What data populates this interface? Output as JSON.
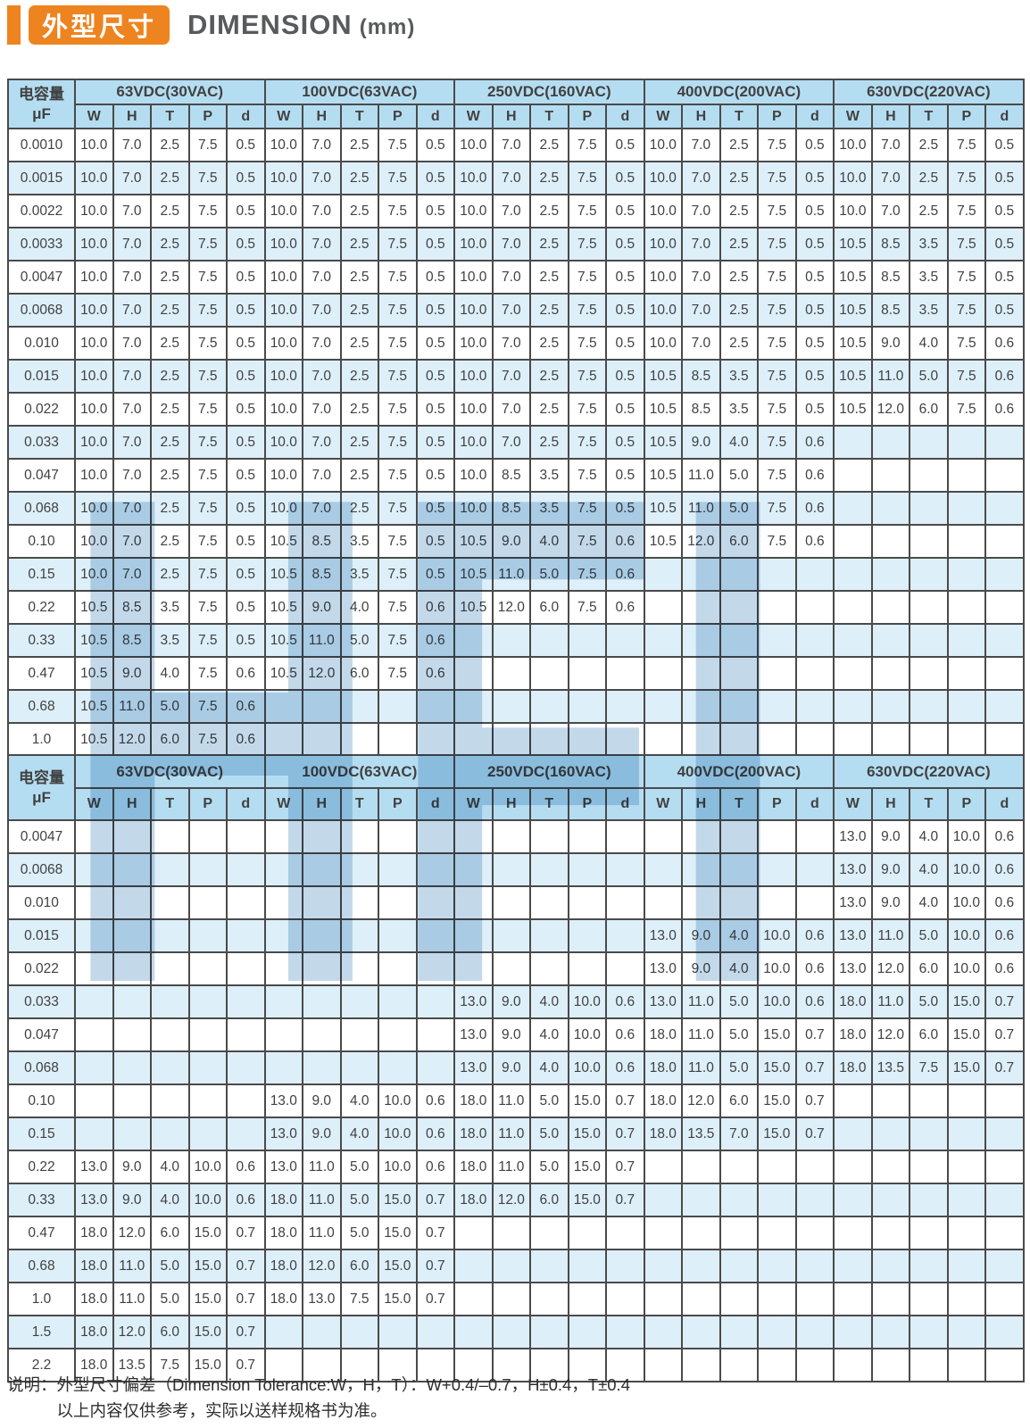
{
  "page": {
    "tag_cn": "外型尺寸",
    "title": "DIMENSION",
    "title_unit": "(mm)",
    "watermark": "HFI",
    "footer_label": "说明：",
    "footer_line1": "外型尺寸偏差（Dimension Tolerance:W，H，T）：W+0.4/–0.7，H±0.4，T±0.4",
    "footer_line2": "以上内容仅供参考，实际以送样规格书为准。"
  },
  "colors": {
    "accent_orange": "#EE8420",
    "header_blue": "#B5DDF1",
    "stripe_blue": "#DDEFF9",
    "grid_border": "#4A4A4A",
    "watermark_blue": "#6FA3CC"
  },
  "table_header": {
    "cap_line1": "电容量",
    "cap_line2": "μF",
    "groups": [
      "63VDC(30VAC)",
      "100VDC(63VAC)",
      "250VDC(160VAC)",
      "400VDC(200VAC)",
      "630VDC(220VAC)"
    ],
    "dims": [
      "W",
      "H",
      "T",
      "P",
      "d"
    ]
  },
  "tables": [
    {
      "rows": [
        {
          "cap": "0.0010",
          "groups": [
            [
              "10.0",
              "7.0",
              "2.5",
              "7.5",
              "0.5"
            ],
            [
              "10.0",
              "7.0",
              "2.5",
              "7.5",
              "0.5"
            ],
            [
              "10.0",
              "7.0",
              "2.5",
              "7.5",
              "0.5"
            ],
            [
              "10.0",
              "7.0",
              "2.5",
              "7.5",
              "0.5"
            ],
            [
              "10.0",
              "7.0",
              "2.5",
              "7.5",
              "0.5"
            ]
          ]
        },
        {
          "cap": "0.0015",
          "groups": [
            [
              "10.0",
              "7.0",
              "2.5",
              "7.5",
              "0.5"
            ],
            [
              "10.0",
              "7.0",
              "2.5",
              "7.5",
              "0.5"
            ],
            [
              "10.0",
              "7.0",
              "2.5",
              "7.5",
              "0.5"
            ],
            [
              "10.0",
              "7.0",
              "2.5",
              "7.5",
              "0.5"
            ],
            [
              "10.0",
              "7.0",
              "2.5",
              "7.5",
              "0.5"
            ]
          ]
        },
        {
          "cap": "0.0022",
          "groups": [
            [
              "10.0",
              "7.0",
              "2.5",
              "7.5",
              "0.5"
            ],
            [
              "10.0",
              "7.0",
              "2.5",
              "7.5",
              "0.5"
            ],
            [
              "10.0",
              "7.0",
              "2.5",
              "7.5",
              "0.5"
            ],
            [
              "10.0",
              "7.0",
              "2.5",
              "7.5",
              "0.5"
            ],
            [
              "10.0",
              "7.0",
              "2.5",
              "7.5",
              "0.5"
            ]
          ]
        },
        {
          "cap": "0.0033",
          "groups": [
            [
              "10.0",
              "7.0",
              "2.5",
              "7.5",
              "0.5"
            ],
            [
              "10.0",
              "7.0",
              "2.5",
              "7.5",
              "0.5"
            ],
            [
              "10.0",
              "7.0",
              "2.5",
              "7.5",
              "0.5"
            ],
            [
              "10.0",
              "7.0",
              "2.5",
              "7.5",
              "0.5"
            ],
            [
              "10.5",
              "8.5",
              "3.5",
              "7.5",
              "0.5"
            ]
          ]
        },
        {
          "cap": "0.0047",
          "groups": [
            [
              "10.0",
              "7.0",
              "2.5",
              "7.5",
              "0.5"
            ],
            [
              "10.0",
              "7.0",
              "2.5",
              "7.5",
              "0.5"
            ],
            [
              "10.0",
              "7.0",
              "2.5",
              "7.5",
              "0.5"
            ],
            [
              "10.0",
              "7.0",
              "2.5",
              "7.5",
              "0.5"
            ],
            [
              "10.5",
              "8.5",
              "3.5",
              "7.5",
              "0.5"
            ]
          ]
        },
        {
          "cap": "0.0068",
          "groups": [
            [
              "10.0",
              "7.0",
              "2.5",
              "7.5",
              "0.5"
            ],
            [
              "10.0",
              "7.0",
              "2.5",
              "7.5",
              "0.5"
            ],
            [
              "10.0",
              "7.0",
              "2.5",
              "7.5",
              "0.5"
            ],
            [
              "10.0",
              "7.0",
              "2.5",
              "7.5",
              "0.5"
            ],
            [
              "10.5",
              "8.5",
              "3.5",
              "7.5",
              "0.5"
            ]
          ]
        },
        {
          "cap": "0.010",
          "groups": [
            [
              "10.0",
              "7.0",
              "2.5",
              "7.5",
              "0.5"
            ],
            [
              "10.0",
              "7.0",
              "2.5",
              "7.5",
              "0.5"
            ],
            [
              "10.0",
              "7.0",
              "2.5",
              "7.5",
              "0.5"
            ],
            [
              "10.0",
              "7.0",
              "2.5",
              "7.5",
              "0.5"
            ],
            [
              "10.5",
              "9.0",
              "4.0",
              "7.5",
              "0.6"
            ]
          ]
        },
        {
          "cap": "0.015",
          "groups": [
            [
              "10.0",
              "7.0",
              "2.5",
              "7.5",
              "0.5"
            ],
            [
              "10.0",
              "7.0",
              "2.5",
              "7.5",
              "0.5"
            ],
            [
              "10.0",
              "7.0",
              "2.5",
              "7.5",
              "0.5"
            ],
            [
              "10.5",
              "8.5",
              "3.5",
              "7.5",
              "0.5"
            ],
            [
              "10.5",
              "11.0",
              "5.0",
              "7.5",
              "0.6"
            ]
          ]
        },
        {
          "cap": "0.022",
          "groups": [
            [
              "10.0",
              "7.0",
              "2.5",
              "7.5",
              "0.5"
            ],
            [
              "10.0",
              "7.0",
              "2.5",
              "7.5",
              "0.5"
            ],
            [
              "10.0",
              "7.0",
              "2.5",
              "7.5",
              "0.5"
            ],
            [
              "10.5",
              "8.5",
              "3.5",
              "7.5",
              "0.5"
            ],
            [
              "10.5",
              "12.0",
              "6.0",
              "7.5",
              "0.6"
            ]
          ]
        },
        {
          "cap": "0.033",
          "groups": [
            [
              "10.0",
              "7.0",
              "2.5",
              "7.5",
              "0.5"
            ],
            [
              "10.0",
              "7.0",
              "2.5",
              "7.5",
              "0.5"
            ],
            [
              "10.0",
              "7.0",
              "2.5",
              "7.5",
              "0.5"
            ],
            [
              "10.5",
              "9.0",
              "4.0",
              "7.5",
              "0.6"
            ],
            null
          ]
        },
        {
          "cap": "0.047",
          "groups": [
            [
              "10.0",
              "7.0",
              "2.5",
              "7.5",
              "0.5"
            ],
            [
              "10.0",
              "7.0",
              "2.5",
              "7.5",
              "0.5"
            ],
            [
              "10.0",
              "8.5",
              "3.5",
              "7.5",
              "0.5"
            ],
            [
              "10.5",
              "11.0",
              "5.0",
              "7.5",
              "0.6"
            ],
            null
          ]
        },
        {
          "cap": "0.068",
          "groups": [
            [
              "10.0",
              "7.0",
              "2.5",
              "7.5",
              "0.5"
            ],
            [
              "10.0",
              "7.0",
              "2.5",
              "7.5",
              "0.5"
            ],
            [
              "10.0",
              "8.5",
              "3.5",
              "7.5",
              "0.5"
            ],
            [
              "10.5",
              "11.0",
              "5.0",
              "7.5",
              "0.6"
            ],
            null
          ]
        },
        {
          "cap": "0.10",
          "groups": [
            [
              "10.0",
              "7.0",
              "2.5",
              "7.5",
              "0.5"
            ],
            [
              "10.5",
              "8.5",
              "3.5",
              "7.5",
              "0.5"
            ],
            [
              "10.5",
              "9.0",
              "4.0",
              "7.5",
              "0.6"
            ],
            [
              "10.5",
              "12.0",
              "6.0",
              "7.5",
              "0.6"
            ],
            null
          ]
        },
        {
          "cap": "0.15",
          "groups": [
            [
              "10.0",
              "7.0",
              "2.5",
              "7.5",
              "0.5"
            ],
            [
              "10.5",
              "8.5",
              "3.5",
              "7.5",
              "0.5"
            ],
            [
              "10.5",
              "11.0",
              "5.0",
              "7.5",
              "0.6"
            ],
            null,
            null
          ]
        },
        {
          "cap": "0.22",
          "groups": [
            [
              "10.5",
              "8.5",
              "3.5",
              "7.5",
              "0.5"
            ],
            [
              "10.5",
              "9.0",
              "4.0",
              "7.5",
              "0.6"
            ],
            [
              "10.5",
              "12.0",
              "6.0",
              "7.5",
              "0.6"
            ],
            null,
            null
          ]
        },
        {
          "cap": "0.33",
          "groups": [
            [
              "10.5",
              "8.5",
              "3.5",
              "7.5",
              "0.5"
            ],
            [
              "10.5",
              "11.0",
              "5.0",
              "7.5",
              "0.6"
            ],
            null,
            null,
            null
          ]
        },
        {
          "cap": "0.47",
          "groups": [
            [
              "10.5",
              "9.0",
              "4.0",
              "7.5",
              "0.6"
            ],
            [
              "10.5",
              "12.0",
              "6.0",
              "7.5",
              "0.6"
            ],
            null,
            null,
            null
          ]
        },
        {
          "cap": "0.68",
          "groups": [
            [
              "10.5",
              "11.0",
              "5.0",
              "7.5",
              "0.6"
            ],
            null,
            null,
            null,
            null
          ]
        },
        {
          "cap": "1.0",
          "groups": [
            [
              "10.5",
              "12.0",
              "6.0",
              "7.5",
              "0.6"
            ],
            null,
            null,
            null,
            null
          ]
        }
      ]
    },
    {
      "rows": [
        {
          "cap": "0.0047",
          "groups": [
            null,
            null,
            null,
            null,
            [
              "13.0",
              "9.0",
              "4.0",
              "10.0",
              "0.6"
            ]
          ]
        },
        {
          "cap": "0.0068",
          "groups": [
            null,
            null,
            null,
            null,
            [
              "13.0",
              "9.0",
              "4.0",
              "10.0",
              "0.6"
            ]
          ]
        },
        {
          "cap": "0.010",
          "groups": [
            null,
            null,
            null,
            null,
            [
              "13.0",
              "9.0",
              "4.0",
              "10.0",
              "0.6"
            ]
          ]
        },
        {
          "cap": "0.015",
          "groups": [
            null,
            null,
            null,
            [
              "13.0",
              "9.0",
              "4.0",
              "10.0",
              "0.6"
            ],
            [
              "13.0",
              "11.0",
              "5.0",
              "10.0",
              "0.6"
            ]
          ]
        },
        {
          "cap": "0.022",
          "groups": [
            null,
            null,
            null,
            [
              "13.0",
              "9.0",
              "4.0",
              "10.0",
              "0.6"
            ],
            [
              "13.0",
              "12.0",
              "6.0",
              "10.0",
              "0.6"
            ]
          ]
        },
        {
          "cap": "0.033",
          "groups": [
            null,
            null,
            [
              "13.0",
              "9.0",
              "4.0",
              "10.0",
              "0.6"
            ],
            [
              "13.0",
              "11.0",
              "5.0",
              "10.0",
              "0.6"
            ],
            [
              "18.0",
              "11.0",
              "5.0",
              "15.0",
              "0.7"
            ]
          ]
        },
        {
          "cap": "0.047",
          "groups": [
            null,
            null,
            [
              "13.0",
              "9.0",
              "4.0",
              "10.0",
              "0.6"
            ],
            [
              "18.0",
              "11.0",
              "5.0",
              "15.0",
              "0.7"
            ],
            [
              "18.0",
              "12.0",
              "6.0",
              "15.0",
              "0.7"
            ]
          ]
        },
        {
          "cap": "0.068",
          "groups": [
            null,
            null,
            [
              "13.0",
              "9.0",
              "4.0",
              "10.0",
              "0.6"
            ],
            [
              "18.0",
              "11.0",
              "5.0",
              "15.0",
              "0.7"
            ],
            [
              "18.0",
              "13.5",
              "7.5",
              "15.0",
              "0.7"
            ]
          ]
        },
        {
          "cap": "0.10",
          "groups": [
            null,
            [
              "13.0",
              "9.0",
              "4.0",
              "10.0",
              "0.6"
            ],
            [
              "18.0",
              "11.0",
              "5.0",
              "15.0",
              "0.7"
            ],
            [
              "18.0",
              "12.0",
              "6.0",
              "15.0",
              "0.7"
            ],
            null
          ]
        },
        {
          "cap": "0.15",
          "groups": [
            null,
            [
              "13.0",
              "9.0",
              "4.0",
              "10.0",
              "0.6"
            ],
            [
              "18.0",
              "11.0",
              "5.0",
              "15.0",
              "0.7"
            ],
            [
              "18.0",
              "13.5",
              "7.0",
              "15.0",
              "0.7"
            ],
            null
          ]
        },
        {
          "cap": "0.22",
          "groups": [
            [
              "13.0",
              "9.0",
              "4.0",
              "10.0",
              "0.6"
            ],
            [
              "13.0",
              "11.0",
              "5.0",
              "10.0",
              "0.6"
            ],
            [
              "18.0",
              "11.0",
              "5.0",
              "15.0",
              "0.7"
            ],
            null,
            null
          ]
        },
        {
          "cap": "0.33",
          "groups": [
            [
              "13.0",
              "9.0",
              "4.0",
              "10.0",
              "0.6"
            ],
            [
              "18.0",
              "11.0",
              "5.0",
              "15.0",
              "0.7"
            ],
            [
              "18.0",
              "12.0",
              "6.0",
              "15.0",
              "0.7"
            ],
            null,
            null
          ]
        },
        {
          "cap": "0.47",
          "groups": [
            [
              "18.0",
              "12.0",
              "6.0",
              "15.0",
              "0.7"
            ],
            [
              "18.0",
              "11.0",
              "5.0",
              "15.0",
              "0.7"
            ],
            null,
            null,
            null
          ]
        },
        {
          "cap": "0.68",
          "groups": [
            [
              "18.0",
              "11.0",
              "5.0",
              "15.0",
              "0.7"
            ],
            [
              "18.0",
              "12.0",
              "6.0",
              "15.0",
              "0.7"
            ],
            null,
            null,
            null
          ]
        },
        {
          "cap": "1.0",
          "groups": [
            [
              "18.0",
              "11.0",
              "5.0",
              "15.0",
              "0.7"
            ],
            [
              "18.0",
              "13.0",
              "7.5",
              "15.0",
              "0.7"
            ],
            null,
            null,
            null
          ]
        },
        {
          "cap": "1.5",
          "groups": [
            [
              "18.0",
              "12.0",
              "6.0",
              "15.0",
              "0.7"
            ],
            null,
            null,
            null,
            null
          ]
        },
        {
          "cap": "2.2",
          "groups": [
            [
              "18.0",
              "13.5",
              "7.5",
              "15.0",
              "0.7"
            ],
            null,
            null,
            null,
            null
          ]
        }
      ]
    }
  ]
}
